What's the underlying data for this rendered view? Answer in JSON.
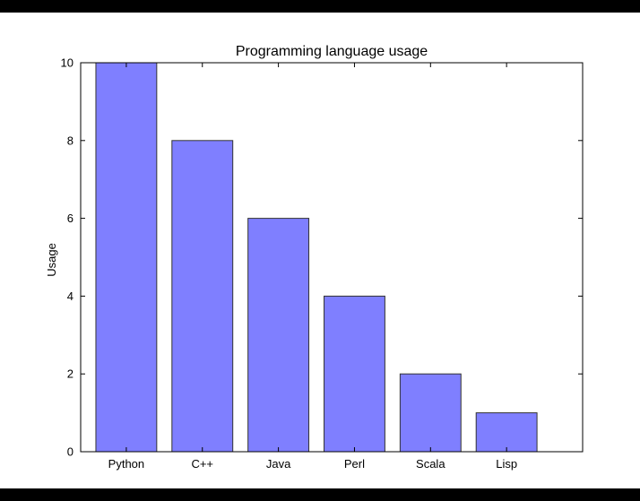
{
  "chart_data": {
    "type": "bar",
    "title": "Programming language usage",
    "xlabel": "",
    "ylabel": "Usage",
    "categories": [
      "Python",
      "C++",
      "Java",
      "Perl",
      "Scala",
      "Lisp"
    ],
    "values": [
      10,
      8,
      6,
      4,
      2,
      1
    ],
    "ylim": [
      0,
      10
    ],
    "yticks": [
      0,
      2,
      4,
      6,
      8,
      10
    ],
    "grid": false,
    "bar_color": "#7f7fff",
    "bar_edge_color": "#333333"
  }
}
